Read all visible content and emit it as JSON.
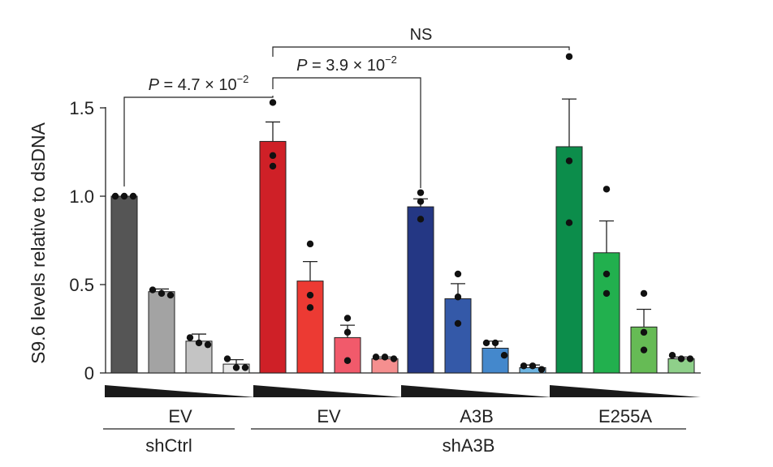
{
  "chart_data": {
    "type": "bar",
    "ylabel": "S9.6 levels relative to dsDNA",
    "ylim": [
      0,
      1.5
    ],
    "yticks": [
      {
        "value": 0,
        "label": "0"
      },
      {
        "value": 0.5,
        "label": "0.5"
      },
      {
        "value": 1.0,
        "label": "1.0"
      },
      {
        "value": 1.5,
        "label": "1.5"
      }
    ],
    "groups": [
      {
        "name": "EV",
        "condition": "shCtrl",
        "bars": [
          {
            "value": 1.0,
            "err": 0.0,
            "points": [
              1.0,
              1.0,
              1.0
            ],
            "color": "#555555"
          },
          {
            "value": 0.46,
            "err": 0.015,
            "points": [
              0.47,
              0.45,
              0.44
            ],
            "color": "#a3a3a3"
          },
          {
            "value": 0.18,
            "err": 0.04,
            "points": [
              0.2,
              0.17,
              0.16
            ],
            "color": "#c4c4c4"
          },
          {
            "value": 0.05,
            "err": 0.025,
            "points": [
              0.08,
              0.03,
              0.03
            ],
            "color": "#e8e8e8"
          }
        ]
      },
      {
        "name": "EV",
        "condition": "shA3B",
        "bars": [
          {
            "value": 1.31,
            "err": 0.11,
            "points": [
              1.53,
              1.23,
              1.17
            ],
            "color": "#cf2027"
          },
          {
            "value": 0.52,
            "err": 0.11,
            "points": [
              0.73,
              0.44,
              0.37
            ],
            "color": "#ec3a33"
          },
          {
            "value": 0.2,
            "err": 0.07,
            "points": [
              0.31,
              0.23,
              0.07
            ],
            "color": "#f15a6b"
          },
          {
            "value": 0.08,
            "err": 0.01,
            "points": [
              0.09,
              0.09,
              0.08
            ],
            "color": "#f58f8f"
          }
        ]
      },
      {
        "name": "A3B",
        "condition": "shA3B",
        "bars": [
          {
            "value": 0.94,
            "err": 0.045,
            "points": [
              1.02,
              0.97,
              0.87
            ],
            "color": "#243784"
          },
          {
            "value": 0.42,
            "err": 0.085,
            "points": [
              0.56,
              0.43,
              0.28
            ],
            "color": "#3459a8"
          },
          {
            "value": 0.14,
            "err": 0.04,
            "points": [
              0.17,
              0.17,
              0.1
            ],
            "color": "#4488cc"
          },
          {
            "value": 0.03,
            "err": 0.015,
            "points": [
              0.04,
              0.04,
              0.02
            ],
            "color": "#6cb4e2"
          }
        ]
      },
      {
        "name": "E255A",
        "condition": "shA3B",
        "bars": [
          {
            "value": 1.28,
            "err": 0.27,
            "points": [
              1.79,
              1.2,
              0.85
            ],
            "color": "#0c8d4b"
          },
          {
            "value": 0.68,
            "err": 0.18,
            "points": [
              1.04,
              0.56,
              0.45
            ],
            "color": "#22b04e"
          },
          {
            "value": 0.26,
            "err": 0.1,
            "points": [
              0.45,
              0.23,
              0.13
            ],
            "color": "#66bb55"
          },
          {
            "value": 0.08,
            "err": 0.01,
            "points": [
              0.1,
              0.08,
              0.08
            ],
            "color": "#8fd08a"
          }
        ]
      }
    ],
    "conditions": [
      "shCtrl",
      "shA3B"
    ],
    "annotations": [
      {
        "label": "P = 4.7 × 10",
        "exponent": "−2",
        "from_group": 0,
        "to_group": 1
      },
      {
        "label": "P = 3.9 × 10",
        "exponent": "−2",
        "from_group": 1,
        "to_group": 2
      },
      {
        "label": "NS",
        "exponent": "",
        "from_group": 1,
        "to_group": 3
      }
    ]
  }
}
